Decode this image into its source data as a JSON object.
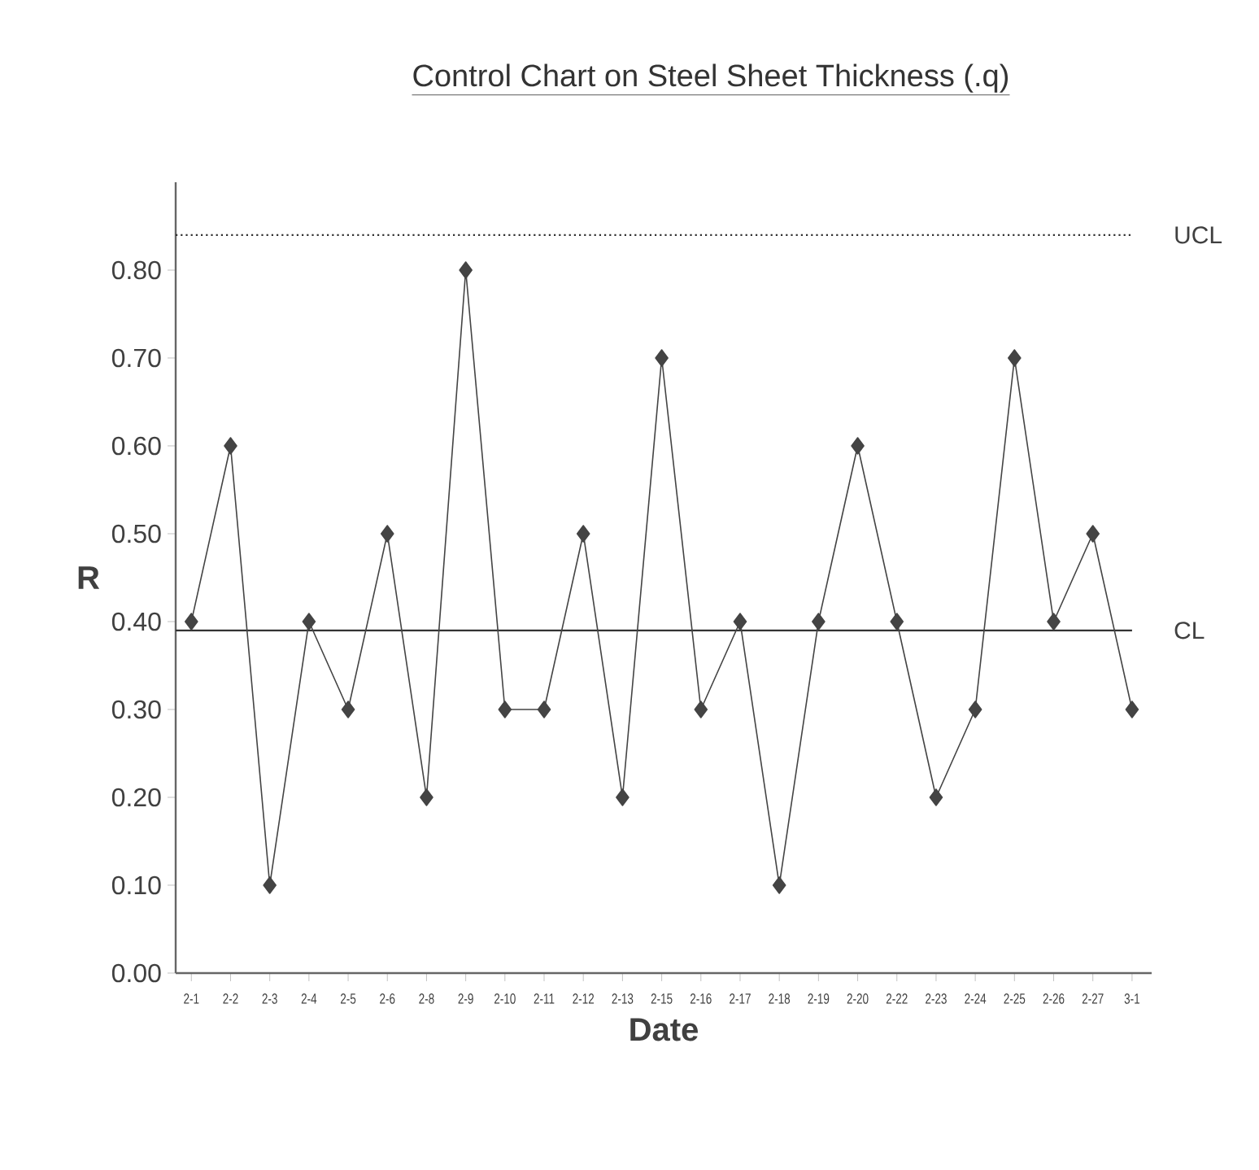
{
  "chart_data": {
    "type": "line",
    "title": "Control Chart on Steel Sheet Thickness (.q)",
    "xlabel": "Date",
    "ylabel": "R",
    "categories": [
      "2-1",
      "2-2",
      "2-3",
      "2-4",
      "2-5",
      "2-6",
      "2-8",
      "2-9",
      "2-10",
      "2-11",
      "2-12",
      "2-13",
      "2-15",
      "2-16",
      "2-17",
      "2-18",
      "2-19",
      "2-20",
      "2-22",
      "2-23",
      "2-24",
      "2-25",
      "2-26",
      "2-27",
      "3-1"
    ],
    "series": [
      {
        "color": "#444444",
        "values": [
          0.4,
          0.6,
          0.1,
          0.4,
          0.3,
          0.5,
          0.2,
          0.8,
          0.3,
          0.3,
          0.5,
          0.2,
          0.7,
          0.3,
          0.4,
          0.1,
          0.4,
          0.6,
          0.4,
          0.2,
          0.3,
          0.7,
          0.4,
          0.5,
          0.3
        ]
      }
    ],
    "ylim": [
      0,
      0.9
    ],
    "yticks": [
      {
        "value": 0,
        "label": "0.00"
      },
      {
        "value": 0.1,
        "label": "0.10"
      },
      {
        "value": 0.2,
        "label": "0.20"
      },
      {
        "value": 0.3,
        "label": "0.30"
      },
      {
        "value": 0.4,
        "label": "0.40"
      },
      {
        "value": 0.5,
        "label": "0.50"
      },
      {
        "value": 0.6,
        "label": "0.60"
      },
      {
        "value": 0.7,
        "label": "0.70"
      },
      {
        "value": 0.8,
        "label": "0.80"
      }
    ],
    "ref_lines": [
      {
        "axis": "y",
        "value": 0.84,
        "label": "UCL",
        "line_style": "dotted",
        "color": "#333333"
      },
      {
        "axis": "y",
        "value": 0.39,
        "label": "CL",
        "line_style": "solid",
        "color": "#333333"
      }
    ],
    "marker": "diamond",
    "line_style": "solid"
  }
}
